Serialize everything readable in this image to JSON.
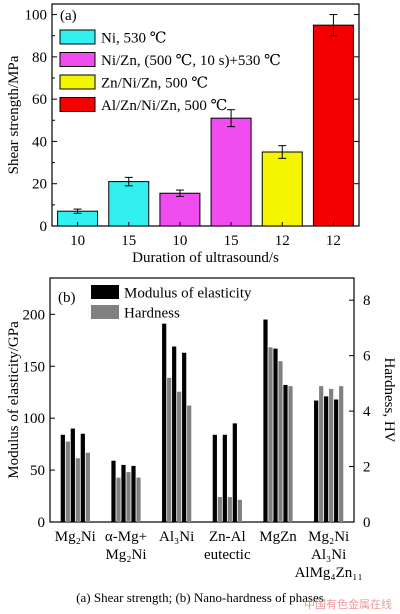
{
  "caption": "(a) Shear strength; (b) Nano-hardness of phases",
  "watermark": "中国有色金属在线",
  "chart_data": [
    {
      "type": "bar",
      "panel_label": "(a)",
      "ylabel": "Shear strength/MPa",
      "xlabel": "Duration of ultrasound/s",
      "ylim": [
        0,
        105
      ],
      "yticks": [
        0,
        20,
        40,
        60,
        80,
        100
      ],
      "categories": [
        "10",
        "15",
        "10",
        "15",
        "12",
        "12"
      ],
      "legend_placement": "top-left",
      "series": [
        {
          "name": "Ni, 530 ℃",
          "color": "#33f0f0",
          "bars": [
            {
              "index": 0,
              "value": 7,
              "error": 1
            },
            {
              "index": 1,
              "value": 21,
              "error": 2
            }
          ]
        },
        {
          "name": "Ni/Zn, (500 ℃, 10 s)+530 ℃",
          "color": "#f04cf0",
          "bars": [
            {
              "index": 2,
              "value": 15.5,
              "error": 1.5
            },
            {
              "index": 3,
              "value": 51,
              "error": 4
            }
          ]
        },
        {
          "name": "Zn/Ni/Zn, 500 ℃",
          "color": "#f5f500",
          "bars": [
            {
              "index": 4,
              "value": 35,
              "error": 3
            }
          ]
        },
        {
          "name": "Al/Zn/Ni/Zn, 500 ℃",
          "color": "#f50000",
          "bars": [
            {
              "index": 5,
              "value": 95,
              "error": 5
            }
          ]
        }
      ]
    },
    {
      "type": "bar",
      "panel_label": "(b)",
      "ylabel": "Modulus of elasticity/GPa",
      "y2label": "Hardness, HV",
      "ylim": [
        0,
        235
      ],
      "yticks": [
        0,
        50,
        100,
        150,
        200
      ],
      "y2lim": [
        0,
        8.8
      ],
      "y2ticks": [
        0,
        2,
        4,
        6,
        8
      ],
      "legend_placement": "top-left",
      "series": [
        {
          "name": "Modulus of elasticity",
          "color": "#000000",
          "axis": "left"
        },
        {
          "name": "Hardness",
          "color": "#808080",
          "axis": "right"
        }
      ],
      "groups": [
        {
          "label_lines": [
            "Mg₂Ni"
          ],
          "modulus": [
            84,
            90,
            85
          ],
          "hardness": [
            2.9,
            2.3,
            2.5
          ]
        },
        {
          "label_lines": [
            "α-Mg+",
            "Mg₂Ni"
          ],
          "modulus": [
            59,
            55,
            54
          ],
          "hardness": [
            1.6,
            1.8,
            1.6
          ]
        },
        {
          "label_lines": [
            "Al₃Ni"
          ],
          "modulus": [
            191,
            169,
            163
          ],
          "hardness": [
            5.2,
            4.7,
            4.2
          ]
        },
        {
          "label_lines": [
            "Zn-Al",
            "eutectic"
          ],
          "modulus": [
            84,
            84,
            95
          ],
          "hardness": [
            0.9,
            0.9,
            0.8
          ]
        },
        {
          "label_lines": [
            "MgZn"
          ],
          "modulus": [
            195,
            167,
            132
          ],
          "hardness": [
            6.3,
            5.8,
            4.9
          ]
        },
        {
          "label_lines": [
            "Mg₂Ni",
            "Al₃Ni",
            "AlMg₄Zn₁₁"
          ],
          "modulus": [
            117,
            121,
            118
          ],
          "hardness": [
            4.9,
            4.8,
            4.9
          ]
        }
      ]
    }
  ]
}
